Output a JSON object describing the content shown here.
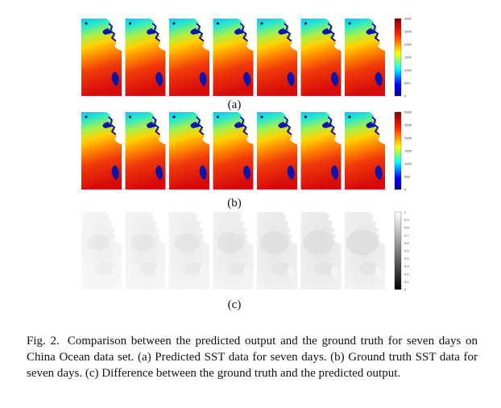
{
  "figure": {
    "panels": [
      {
        "id": "a",
        "label": "(a)",
        "colormap": "jet",
        "colorbar_ticks": [
          "3000",
          "2500",
          "2000",
          "1500",
          "1000",
          "500",
          "0"
        ]
      },
      {
        "id": "b",
        "label": "(b)",
        "colormap": "jet",
        "colorbar_ticks": [
          "3000",
          "2500",
          "2000",
          "1500",
          "1000",
          "500",
          "0"
        ]
      },
      {
        "id": "c",
        "label": "(c)",
        "colormap": "gray",
        "colorbar_ticks": [
          "1",
          "0.9",
          "0.8",
          "0.7",
          "0.6",
          "0.5",
          "0.4",
          "0.3",
          "0.2",
          "0.1",
          "0"
        ]
      }
    ],
    "days_per_row": 7
  },
  "caption": {
    "lead": "Fig. 2.",
    "text": "Comparison between the predicted output and the ground truth for seven days on China Ocean data set. (a) Predicted SST data for seven days. (b) Ground truth SST data for seven days. (c) Difference between the ground truth and the predicted output."
  }
}
